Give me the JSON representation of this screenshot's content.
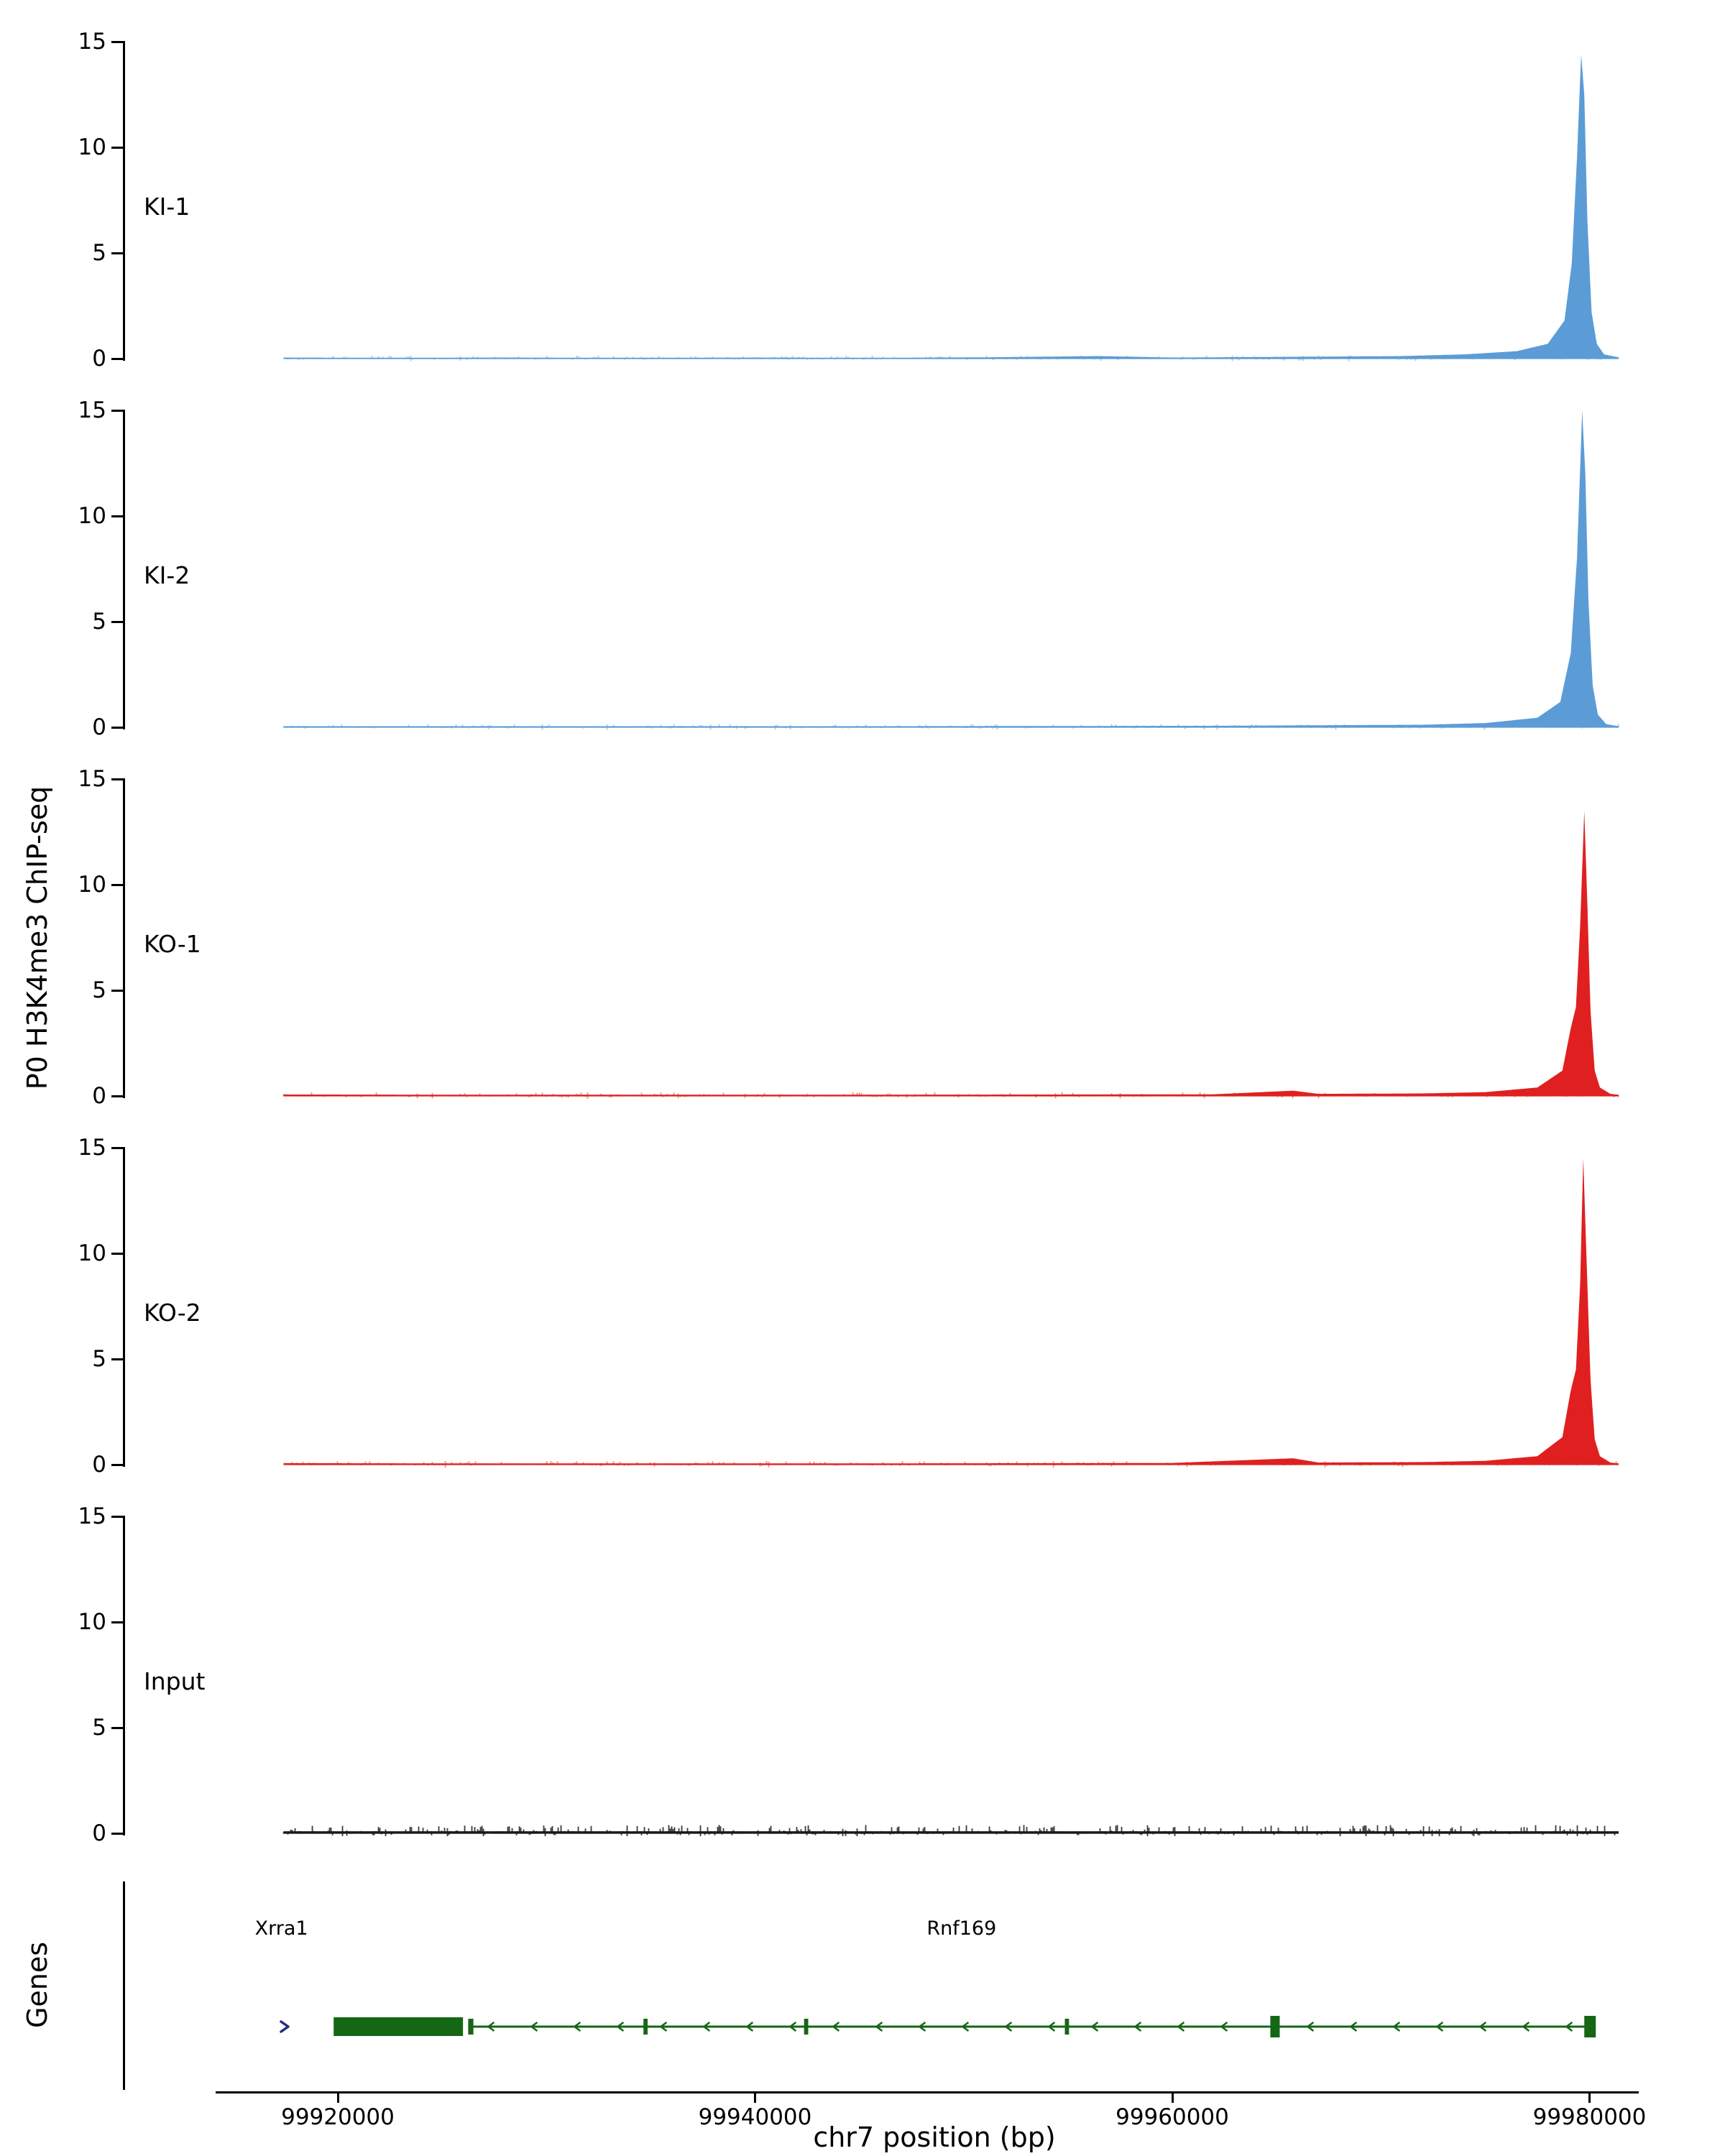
{
  "figure": {
    "ylabel": "P0 H3K4me3 ChIP-seq",
    "genes_label": "Genes",
    "xlabel": "chr7 position (bp)"
  },
  "chart_data": {
    "type": "area",
    "title": "",
    "xlabel": "chr7 position (bp)",
    "ylabel": "P0 H3K4me3 ChIP-seq",
    "xlim": [
      99909800,
      99982100
    ],
    "data_xlim": [
      99917400,
      99981400
    ],
    "ylim": [
      0,
      15
    ],
    "y_ticks": [
      0,
      5,
      10,
      15
    ],
    "x_ticks": [
      99920000,
      99940000,
      99960000,
      99980000
    ],
    "x_tick_labels": [
      "99920000",
      "99940000",
      "99960000",
      "99980000"
    ],
    "grid": false,
    "legend": "none",
    "tracks": [
      {
        "name": "KI-1",
        "color": "#5B9CD6",
        "noise": 0.07,
        "points": [
          [
            99917400,
            0.05
          ],
          [
            99922000,
            0.04
          ],
          [
            99928000,
            0.05
          ],
          [
            99934000,
            0.04
          ],
          [
            99940000,
            0.05
          ],
          [
            99946000,
            0.04
          ],
          [
            99951000,
            0.06
          ],
          [
            99956500,
            0.12
          ],
          [
            99960000,
            0.05
          ],
          [
            99965000,
            0.08
          ],
          [
            99968000,
            0.1
          ],
          [
            99971000,
            0.12
          ],
          [
            99974000,
            0.2
          ],
          [
            99976500,
            0.35
          ],
          [
            99978000,
            0.7
          ],
          [
            99978800,
            1.8
          ],
          [
            99979150,
            4.5
          ],
          [
            99979400,
            9.5
          ],
          [
            99979600,
            14.4
          ],
          [
            99979750,
            12.5
          ],
          [
            99979900,
            6.5
          ],
          [
            99980100,
            2.2
          ],
          [
            99980350,
            0.7
          ],
          [
            99980700,
            0.2
          ],
          [
            99981400,
            0.06
          ]
        ]
      },
      {
        "name": "KI-2",
        "color": "#5B9CD6",
        "noise": 0.07,
        "points": [
          [
            99917400,
            0.05
          ],
          [
            99925000,
            0.05
          ],
          [
            99935000,
            0.05
          ],
          [
            99945000,
            0.05
          ],
          [
            99955000,
            0.06
          ],
          [
            99962000,
            0.07
          ],
          [
            99968000,
            0.1
          ],
          [
            99972000,
            0.12
          ],
          [
            99975000,
            0.2
          ],
          [
            99977500,
            0.45
          ],
          [
            99978600,
            1.2
          ],
          [
            99979100,
            3.5
          ],
          [
            99979400,
            8.0
          ],
          [
            99979650,
            15.0
          ],
          [
            99979800,
            12.0
          ],
          [
            99979950,
            6.0
          ],
          [
            99980150,
            2.0
          ],
          [
            99980400,
            0.6
          ],
          [
            99980800,
            0.15
          ],
          [
            99981400,
            0.05
          ]
        ]
      },
      {
        "name": "KO-1",
        "color": "#E02020",
        "noise": 0.08,
        "points": [
          [
            99917400,
            0.07
          ],
          [
            99925000,
            0.06
          ],
          [
            99935000,
            0.06
          ],
          [
            99945000,
            0.06
          ],
          [
            99955000,
            0.07
          ],
          [
            99962000,
            0.08
          ],
          [
            99965800,
            0.25
          ],
          [
            99967000,
            0.1
          ],
          [
            99972000,
            0.12
          ],
          [
            99975000,
            0.18
          ],
          [
            99977500,
            0.4
          ],
          [
            99978700,
            1.2
          ],
          [
            99979100,
            3.2
          ],
          [
            99979350,
            4.2
          ],
          [
            99979550,
            8.0
          ],
          [
            99979750,
            13.5
          ],
          [
            99979900,
            9.0
          ],
          [
            99980050,
            4.0
          ],
          [
            99980250,
            1.2
          ],
          [
            99980500,
            0.4
          ],
          [
            99981000,
            0.1
          ],
          [
            99981400,
            0.06
          ]
        ]
      },
      {
        "name": "KO-2",
        "color": "#E02020",
        "noise": 0.08,
        "points": [
          [
            99917400,
            0.07
          ],
          [
            99925000,
            0.06
          ],
          [
            99935000,
            0.06
          ],
          [
            99945000,
            0.06
          ],
          [
            99955000,
            0.07
          ],
          [
            99960000,
            0.08
          ],
          [
            99965800,
            0.3
          ],
          [
            99967000,
            0.1
          ],
          [
            99972000,
            0.12
          ],
          [
            99975000,
            0.18
          ],
          [
            99977500,
            0.4
          ],
          [
            99978700,
            1.3
          ],
          [
            99979100,
            3.5
          ],
          [
            99979350,
            4.5
          ],
          [
            99979550,
            8.5
          ],
          [
            99979700,
            14.5
          ],
          [
            99979850,
            10.0
          ],
          [
            99980050,
            4.0
          ],
          [
            99980250,
            1.2
          ],
          [
            99980500,
            0.4
          ],
          [
            99981000,
            0.1
          ],
          [
            99981400,
            0.06
          ]
        ]
      },
      {
        "name": "Input",
        "color": "#1A1A1A",
        "noise": 0.18,
        "points": [
          [
            99917400,
            0.1
          ],
          [
            99930000,
            0.1
          ],
          [
            99945000,
            0.1
          ],
          [
            99960000,
            0.1
          ],
          [
            99975000,
            0.1
          ],
          [
            99981400,
            0.1
          ]
        ]
      }
    ],
    "genes": {
      "track_label": "Genes",
      "gene_color": "#156615",
      "arrow_color": "#1F2D7B",
      "upstream_arrow_bp": 99917450,
      "items": [
        {
          "name": "Xrra1",
          "strand": "+",
          "start": 99919800,
          "end": 99926000,
          "type": "box",
          "label_bp": 99917300
        },
        {
          "name": "Rnf169",
          "strand": "-",
          "start": 99926250,
          "end": 99980300,
          "type": "intron-exon",
          "label_bp": 99949900,
          "exons": [
            {
              "start": 99926250,
              "end": 99926500
            },
            {
              "start": 99934650,
              "end": 99934850
            },
            {
              "start": 99942350,
              "end": 99942550
            },
            {
              "start": 99954850,
              "end": 99955050
            },
            {
              "start": 99964700,
              "end": 99965150
            },
            {
              "start": 99979750,
              "end": 99980300
            }
          ]
        }
      ]
    }
  }
}
